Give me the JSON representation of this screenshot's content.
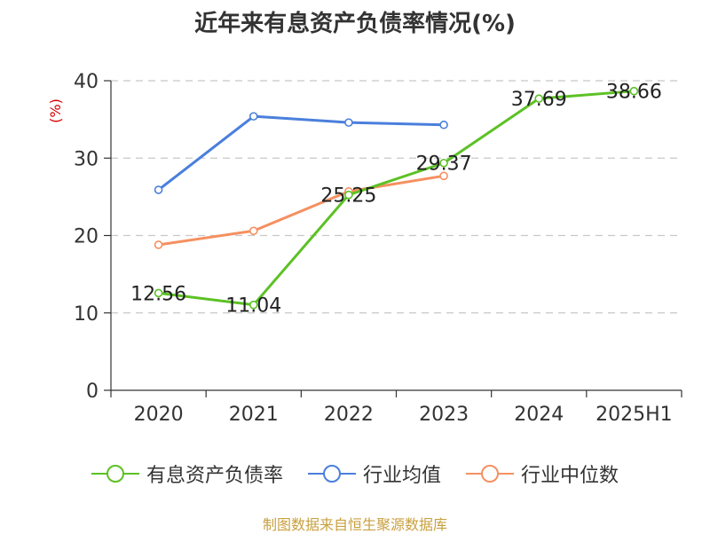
{
  "chart_data": {
    "type": "line",
    "title": "近年来有息资产负债率情况(%)",
    "ylabel": "(%)",
    "categories": [
      "2020",
      "2021",
      "2022",
      "2023",
      "2024",
      "2025H1"
    ],
    "ylim": [
      0,
      40
    ],
    "yticks": [
      0,
      10,
      20,
      30,
      40
    ],
    "grid": true,
    "legend_position": "bottom",
    "series": [
      {
        "name": "有息资产负债率",
        "color": "#5cc125",
        "values": [
          12.56,
          11.04,
          25.25,
          29.37,
          37.69,
          38.66
        ],
        "labels": [
          "12.56",
          "11.04",
          "25.25",
          "29.37",
          "37.69",
          "38.66"
        ]
      },
      {
        "name": "行业均值",
        "color": "#4a7fdc",
        "values": [
          25.9,
          35.4,
          34.6,
          34.3,
          null,
          null
        ]
      },
      {
        "name": "行业中位数",
        "color": "#f59060",
        "values": [
          18.8,
          20.6,
          25.7,
          27.7,
          null,
          null
        ]
      }
    ]
  },
  "footer": {
    "source": "制图数据来自恒生聚源数据库"
  }
}
